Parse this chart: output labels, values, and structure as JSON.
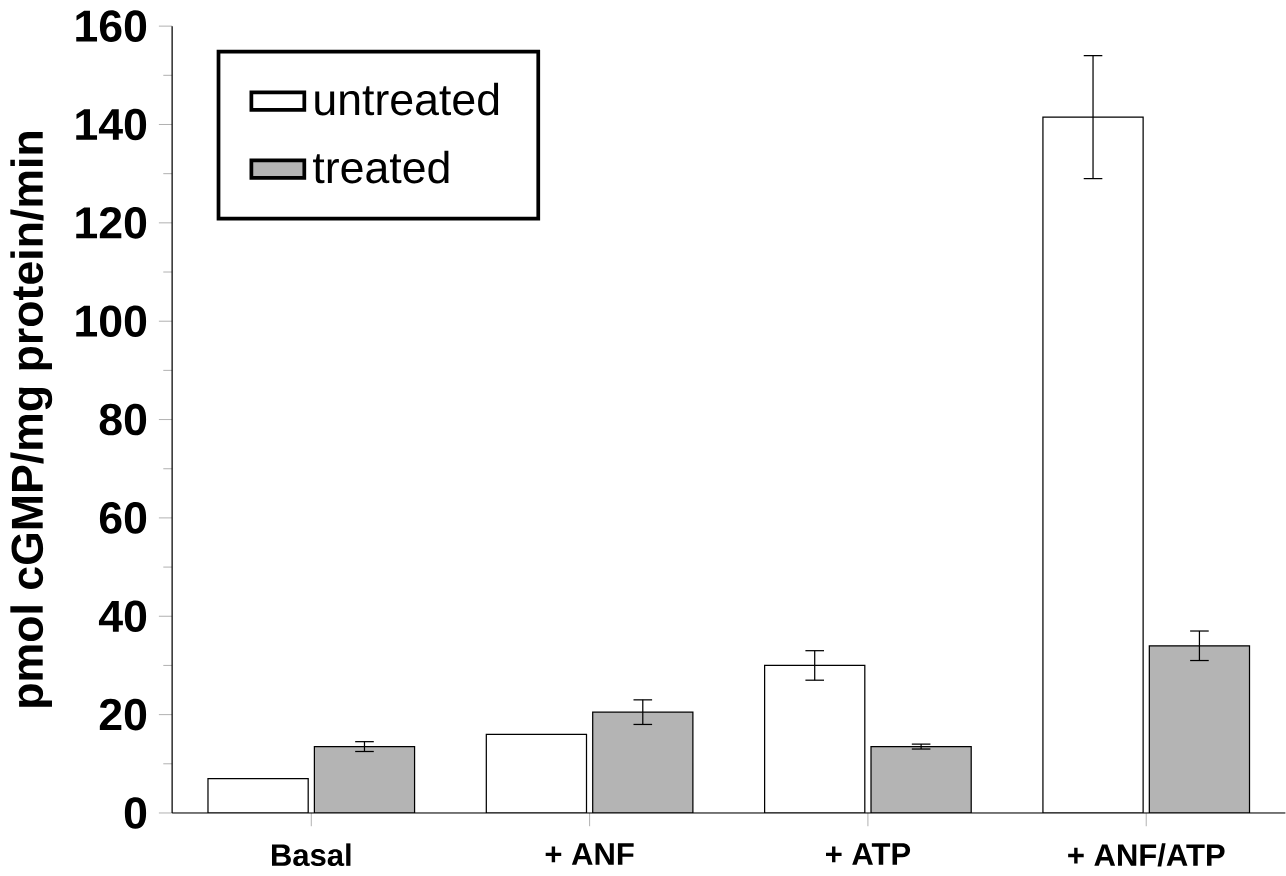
{
  "chart_data": {
    "type": "bar",
    "ylabel": "pmol cGMP/mg protein/min",
    "categories": [
      "Basal",
      "+ ANF",
      "+ ATP",
      "+ ANF/ATP"
    ],
    "series": [
      {
        "name": "untreated",
        "color": "#ffffff",
        "values": [
          7,
          16,
          30,
          141.5
        ],
        "errors": [
          null,
          null,
          3,
          12.5
        ]
      },
      {
        "name": "treated",
        "color": "#b4b4b4",
        "values": [
          13.5,
          20.5,
          13.5,
          34
        ],
        "errors": [
          1,
          2.5,
          0.5,
          3
        ]
      }
    ],
    "ylim": [
      0,
      160
    ],
    "yticks": [
      0,
      20,
      40,
      60,
      80,
      100,
      120,
      140,
      160
    ],
    "legend": "top left",
    "grid": false
  }
}
